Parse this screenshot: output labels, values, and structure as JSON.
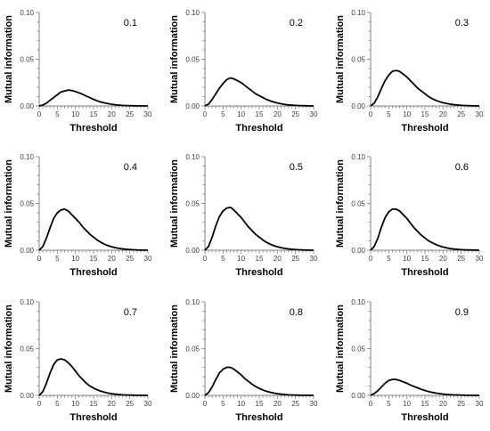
{
  "chart_data": [
    {
      "type": "line",
      "panel_label": "0.1",
      "xlabel": "Threshold",
      "ylabel": "Mutual information",
      "xlim": [
        0,
        30
      ],
      "ylim": [
        0,
        0.1
      ],
      "x_ticks": [
        "0",
        "5",
        "10",
        "15",
        "20",
        "25",
        "30"
      ],
      "y_ticks": [
        "0.00",
        "0.05",
        "0.10"
      ],
      "grid": false,
      "x": [
        0,
        1,
        2,
        3,
        4,
        5,
        6,
        7,
        8,
        9,
        10,
        11,
        12,
        13,
        14,
        15,
        16,
        17,
        18,
        19,
        20,
        21,
        22,
        23,
        24,
        25,
        26,
        27,
        28,
        29,
        30
      ],
      "values": [
        0,
        0.001,
        0.003,
        0.006,
        0.009,
        0.012,
        0.015,
        0.016,
        0.017,
        0.0165,
        0.0155,
        0.014,
        0.0125,
        0.0105,
        0.009,
        0.007,
        0.0055,
        0.0043,
        0.0033,
        0.0025,
        0.0018,
        0.0013,
        0.0009,
        0.0006,
        0.0004,
        0.0003,
        0.0002,
        0.0001,
        0.0001,
        0,
        0
      ]
    },
    {
      "type": "line",
      "panel_label": "0.2",
      "xlabel": "Threshold",
      "ylabel": "Mutual information",
      "xlim": [
        0,
        30
      ],
      "ylim": [
        0,
        0.1
      ],
      "x_ticks": [
        "0",
        "5",
        "10",
        "15",
        "20",
        "25",
        "30"
      ],
      "y_ticks": [
        "0.00",
        "0.05",
        "0.10"
      ],
      "grid": false,
      "x": [
        0,
        1,
        2,
        3,
        4,
        5,
        6,
        7,
        8,
        9,
        10,
        11,
        12,
        13,
        14,
        15,
        16,
        17,
        18,
        19,
        20,
        21,
        22,
        23,
        24,
        25,
        26,
        27,
        28,
        29,
        30
      ],
      "values": [
        0,
        0.002,
        0.007,
        0.013,
        0.019,
        0.024,
        0.028,
        0.03,
        0.029,
        0.027,
        0.025,
        0.022,
        0.019,
        0.016,
        0.013,
        0.011,
        0.009,
        0.007,
        0.0055,
        0.0042,
        0.0032,
        0.0024,
        0.0017,
        0.0012,
        0.0009,
        0.0006,
        0.0004,
        0.0003,
        0.0002,
        0.0001,
        0
      ]
    },
    {
      "type": "line",
      "panel_label": "0.3",
      "xlabel": "Threshold",
      "ylabel": "Mutual information",
      "xlim": [
        0,
        30
      ],
      "ylim": [
        0,
        0.1
      ],
      "x_ticks": [
        "0",
        "5",
        "10",
        "15",
        "20",
        "25",
        "30"
      ],
      "y_ticks": [
        "0.00",
        "0.05",
        "0.10"
      ],
      "grid": false,
      "x": [
        0,
        1,
        2,
        3,
        4,
        5,
        6,
        7,
        8,
        9,
        10,
        11,
        12,
        13,
        14,
        15,
        16,
        17,
        18,
        19,
        20,
        21,
        22,
        23,
        24,
        25,
        26,
        27,
        28,
        29,
        30
      ],
      "values": [
        0,
        0.003,
        0.01,
        0.019,
        0.027,
        0.033,
        0.037,
        0.038,
        0.037,
        0.034,
        0.031,
        0.027,
        0.023,
        0.019,
        0.016,
        0.013,
        0.01,
        0.0078,
        0.006,
        0.0046,
        0.0035,
        0.0026,
        0.0019,
        0.0014,
        0.001,
        0.0007,
        0.0005,
        0.0003,
        0.0002,
        0.0001,
        0
      ]
    },
    {
      "type": "line",
      "panel_label": "0.4",
      "xlabel": "Threshold",
      "ylabel": "Mutual information",
      "xlim": [
        0,
        30
      ],
      "ylim": [
        0,
        0.1
      ],
      "x_ticks": [
        "0",
        "5",
        "10",
        "15",
        "20",
        "25",
        "30"
      ],
      "y_ticks": [
        "0.00",
        "0.05",
        "0.10"
      ],
      "grid": false,
      "x": [
        0,
        1,
        2,
        3,
        4,
        5,
        6,
        7,
        8,
        9,
        10,
        11,
        12,
        13,
        14,
        15,
        16,
        17,
        18,
        19,
        20,
        21,
        22,
        23,
        24,
        25,
        26,
        27,
        28,
        29,
        30
      ],
      "values": [
        0,
        0.004,
        0.013,
        0.024,
        0.034,
        0.04,
        0.043,
        0.044,
        0.042,
        0.038,
        0.034,
        0.03,
        0.025,
        0.021,
        0.017,
        0.014,
        0.011,
        0.0085,
        0.0065,
        0.0049,
        0.0037,
        0.0027,
        0.002,
        0.0014,
        0.001,
        0.0007,
        0.0005,
        0.0003,
        0.0002,
        0.0001,
        0
      ]
    },
    {
      "type": "line",
      "panel_label": "0.5",
      "xlabel": "Threshold",
      "ylabel": "Mutual information",
      "xlim": [
        0,
        30
      ],
      "ylim": [
        0,
        0.1
      ],
      "x_ticks": [
        "0",
        "5",
        "10",
        "15",
        "20",
        "25",
        "30"
      ],
      "y_ticks": [
        "0.00",
        "0.05",
        "0.10"
      ],
      "grid": false,
      "x": [
        0,
        1,
        2,
        3,
        4,
        5,
        6,
        7,
        8,
        9,
        10,
        11,
        12,
        13,
        14,
        15,
        16,
        17,
        18,
        19,
        20,
        21,
        22,
        23,
        24,
        25,
        26,
        27,
        28,
        29,
        30
      ],
      "values": [
        0,
        0.004,
        0.014,
        0.026,
        0.036,
        0.042,
        0.045,
        0.046,
        0.043,
        0.039,
        0.035,
        0.03,
        0.025,
        0.021,
        0.017,
        0.014,
        0.011,
        0.0085,
        0.0065,
        0.0049,
        0.0037,
        0.0027,
        0.002,
        0.0014,
        0.001,
        0.0007,
        0.0005,
        0.0003,
        0.0002,
        0.0001,
        0
      ]
    },
    {
      "type": "line",
      "panel_label": "0.6",
      "xlabel": "Threshold",
      "ylabel": "Mutual information",
      "xlim": [
        0,
        30
      ],
      "ylim": [
        0,
        0.1
      ],
      "x_ticks": [
        "0",
        "5",
        "10",
        "15",
        "20",
        "25",
        "30"
      ],
      "y_ticks": [
        "0.00",
        "0.05",
        "0.10"
      ],
      "grid": false,
      "x": [
        0,
        1,
        2,
        3,
        4,
        5,
        6,
        7,
        8,
        9,
        10,
        11,
        12,
        13,
        14,
        15,
        16,
        17,
        18,
        19,
        20,
        21,
        22,
        23,
        24,
        25,
        26,
        27,
        28,
        29,
        30
      ],
      "values": [
        0,
        0.004,
        0.013,
        0.025,
        0.035,
        0.041,
        0.044,
        0.044,
        0.042,
        0.038,
        0.034,
        0.029,
        0.024,
        0.02,
        0.016,
        0.013,
        0.01,
        0.008,
        0.0061,
        0.0046,
        0.0034,
        0.0025,
        0.0018,
        0.0013,
        0.0009,
        0.0006,
        0.0004,
        0.0003,
        0.0002,
        0.0001,
        0
      ]
    },
    {
      "type": "line",
      "panel_label": "0.7",
      "xlabel": "Threshold",
      "ylabel": "Mutual information",
      "xlim": [
        0,
        30
      ],
      "ylim": [
        0,
        0.1
      ],
      "x_ticks": [
        "0",
        "5",
        "10",
        "15",
        "20",
        "25",
        "30"
      ],
      "y_ticks": [
        "0.00",
        "0.05",
        "0.10"
      ],
      "grid": false,
      "x": [
        0,
        1,
        2,
        3,
        4,
        5,
        6,
        7,
        8,
        9,
        10,
        11,
        12,
        13,
        14,
        15,
        16,
        17,
        18,
        19,
        20,
        21,
        22,
        23,
        24,
        25,
        26,
        27,
        28,
        29,
        30
      ],
      "values": [
        0,
        0.004,
        0.013,
        0.024,
        0.033,
        0.038,
        0.039,
        0.038,
        0.035,
        0.031,
        0.026,
        0.021,
        0.017,
        0.013,
        0.01,
        0.0078,
        0.006,
        0.0045,
        0.0034,
        0.0025,
        0.0018,
        0.0013,
        0.0009,
        0.0006,
        0.0004,
        0.0003,
        0.0002,
        0.0001,
        0.0001,
        0,
        0
      ]
    },
    {
      "type": "line",
      "panel_label": "0.8",
      "xlabel": "Threshold",
      "ylabel": "Mutual information",
      "xlim": [
        0,
        30
      ],
      "ylim": [
        0,
        0.1
      ],
      "x_ticks": [
        "0",
        "5",
        "10",
        "15",
        "20",
        "25",
        "30"
      ],
      "y_ticks": [
        "0.00",
        "0.05",
        "0.10"
      ],
      "grid": false,
      "x": [
        0,
        1,
        2,
        3,
        4,
        5,
        6,
        7,
        8,
        9,
        10,
        11,
        12,
        13,
        14,
        15,
        16,
        17,
        18,
        19,
        20,
        21,
        22,
        23,
        24,
        25,
        26,
        27,
        28,
        29,
        30
      ],
      "values": [
        0,
        0.003,
        0.009,
        0.017,
        0.024,
        0.028,
        0.03,
        0.03,
        0.028,
        0.025,
        0.022,
        0.018,
        0.015,
        0.012,
        0.0095,
        0.0075,
        0.0058,
        0.0044,
        0.0033,
        0.0025,
        0.0018,
        0.0013,
        0.0009,
        0.0006,
        0.0004,
        0.0003,
        0.0002,
        0.0001,
        0.0001,
        0,
        0
      ]
    },
    {
      "type": "line",
      "panel_label": "0.9",
      "xlabel": "Threshold",
      "ylabel": "Mutual information",
      "xlim": [
        0,
        30
      ],
      "ylim": [
        0,
        0.1
      ],
      "x_ticks": [
        "0",
        "5",
        "10",
        "15",
        "20",
        "25",
        "30"
      ],
      "y_ticks": [
        "0.00",
        "0.05",
        "0.10"
      ],
      "grid": false,
      "x": [
        0,
        1,
        2,
        3,
        4,
        5,
        6,
        7,
        8,
        9,
        10,
        11,
        12,
        13,
        14,
        15,
        16,
        17,
        18,
        19,
        20,
        21,
        22,
        23,
        24,
        25,
        26,
        27,
        28,
        29,
        30
      ],
      "values": [
        0,
        0.002,
        0.005,
        0.009,
        0.013,
        0.016,
        0.017,
        0.017,
        0.016,
        0.0145,
        0.013,
        0.011,
        0.0095,
        0.008,
        0.0065,
        0.0052,
        0.0041,
        0.0032,
        0.0025,
        0.0019,
        0.0014,
        0.001,
        0.0007,
        0.0005,
        0.0004,
        0.0003,
        0.0002,
        0.0001,
        0.0001,
        0,
        0
      ]
    }
  ]
}
